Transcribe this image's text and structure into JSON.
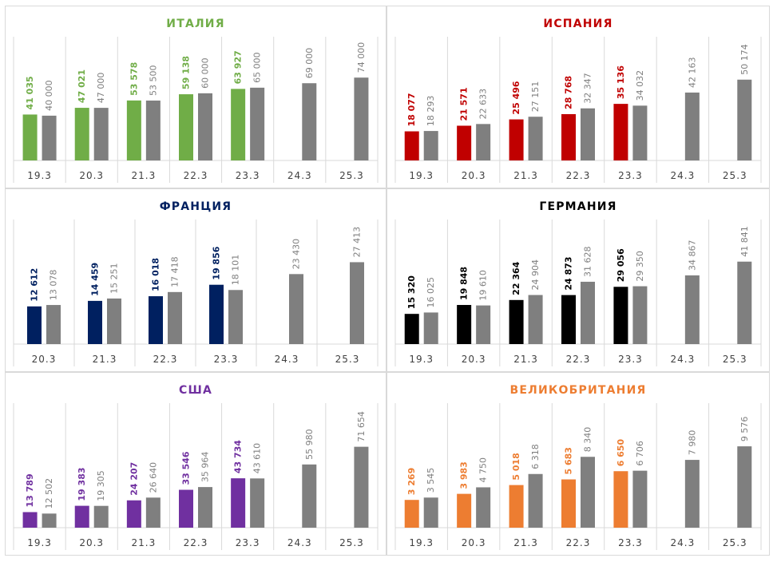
{
  "chart_data": [
    {
      "type": "bar",
      "title": "ИТАЛИЯ",
      "title_color": "#70ad47",
      "categories": [
        "19.3",
        "20.3",
        "21.3",
        "22.3",
        "23.3",
        "24.3",
        "25.3"
      ],
      "series": [
        {
          "color": "#70ad47",
          "values": [
            41035,
            47021,
            53578,
            59138,
            63927,
            null,
            null
          ],
          "labels": [
            "41 035",
            "47 021",
            "53 578",
            "59 138",
            "63 927",
            "",
            ""
          ]
        },
        {
          "color": "#7f7f7f",
          "values": [
            40000,
            47000,
            53500,
            60000,
            65000,
            69000,
            74000
          ],
          "labels": [
            "40 000",
            "47 000",
            "53 500",
            "60 000",
            "65 000",
            "69 000",
            "74 000"
          ]
        }
      ],
      "ylim": [
        0,
        82000
      ]
    },
    {
      "type": "bar",
      "title": "ИСПАНИЯ",
      "title_color": "#c00000",
      "categories": [
        "19.3",
        "20.3",
        "21.3",
        "22.3",
        "23.3",
        "24.3",
        "25.3"
      ],
      "series": [
        {
          "color": "#c00000",
          "values": [
            18077,
            21571,
            25496,
            28768,
            35136,
            null,
            null
          ],
          "labels": [
            "18 077",
            "21 571",
            "25 496",
            "28 768",
            "35 136",
            "",
            ""
          ]
        },
        {
          "color": "#7f7f7f",
          "values": [
            18293,
            22633,
            27151,
            32347,
            34032,
            42163,
            50174
          ],
          "labels": [
            "18 293",
            "22 633",
            "27 151",
            "32 347",
            "34 032",
            "42 163",
            "50 174"
          ]
        }
      ],
      "ylim": [
        0,
        57000
      ]
    },
    {
      "type": "bar",
      "title": "ФРАНЦИЯ",
      "title_color": "#002060",
      "categories": [
        "20.3",
        "21.3",
        "22.3",
        "23.3",
        "24.3",
        "25.3"
      ],
      "series": [
        {
          "color": "#002060",
          "values": [
            12612,
            14459,
            16018,
            19856,
            null,
            null
          ],
          "labels": [
            "12 612",
            "14 459",
            "16 018",
            "19 856",
            "",
            ""
          ]
        },
        {
          "color": "#7f7f7f",
          "values": [
            13078,
            15251,
            17418,
            18101,
            23430,
            27413
          ],
          "labels": [
            "13 078",
            "15 251",
            "17 418",
            "18 101",
            "23 430",
            "27 413"
          ]
        }
      ],
      "ylim": [
        0,
        31000
      ]
    },
    {
      "type": "bar",
      "title": "ГЕРМАНИЯ",
      "title_color": "#000000",
      "categories": [
        "19.3",
        "20.3",
        "21.3",
        "22.3",
        "23.3",
        "24.3",
        "25.3"
      ],
      "series": [
        {
          "color": "#000000",
          "values": [
            15320,
            19848,
            22364,
            24873,
            29056,
            null,
            null
          ],
          "labels": [
            "15 320",
            "19 848",
            "22 364",
            "24 873",
            "29 056",
            "",
            ""
          ]
        },
        {
          "color": "#7f7f7f",
          "values": [
            16025,
            19610,
            24904,
            31628,
            29350,
            34867,
            41841
          ],
          "labels": [
            "16 025",
            "19 610",
            "24 904",
            "31 628",
            "29 350",
            "34 867",
            "41 841"
          ]
        }
      ],
      "ylim": [
        0,
        47000
      ]
    },
    {
      "type": "bar",
      "title": "США",
      "title_color": "#7030a0",
      "categories": [
        "19.3",
        "20.3",
        "21.3",
        "22.3",
        "23.3",
        "24.3",
        "25.3"
      ],
      "series": [
        {
          "color": "#7030a0",
          "values": [
            13789,
            19383,
            24207,
            33546,
            43734,
            null,
            null
          ],
          "labels": [
            "13 789",
            "19 383",
            "24 207",
            "33 546",
            "43 734",
            "",
            ""
          ]
        },
        {
          "color": "#7f7f7f",
          "values": [
            12502,
            19305,
            26640,
            35964,
            43610,
            55980,
            71654
          ],
          "labels": [
            "12 502",
            "19 305",
            "26 640",
            "35 964",
            "43 610",
            "55 980",
            "71 654"
          ]
        }
      ],
      "ylim": [
        0,
        82000
      ]
    },
    {
      "type": "bar",
      "title": "ВЕЛИКОБРИТАНИЯ",
      "title_color": "#ed7d31",
      "categories": [
        "19.3",
        "20.3",
        "21.3",
        "22.3",
        "23.3",
        "24.3",
        "25.3"
      ],
      "series": [
        {
          "color": "#ed7d31",
          "values": [
            3269,
            3983,
            5018,
            5683,
            6650,
            null,
            null
          ],
          "labels": [
            "3 269",
            "3 983",
            "5 018",
            "5 683",
            "6 650",
            "",
            ""
          ]
        },
        {
          "color": "#7f7f7f",
          "values": [
            3545,
            4750,
            6318,
            8340,
            6706,
            7980,
            9576
          ],
          "labels": [
            "3 545",
            "4 750",
            "6 318",
            "8 340",
            "6 706",
            "7 980",
            "9 576"
          ]
        }
      ],
      "ylim": [
        0,
        10900
      ]
    }
  ]
}
